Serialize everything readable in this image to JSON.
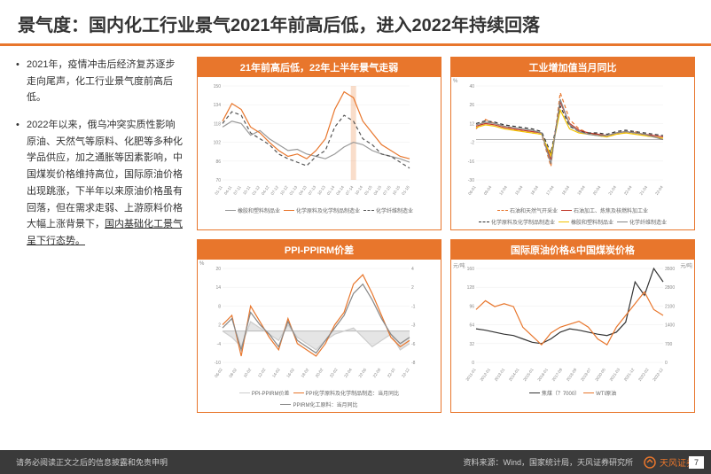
{
  "header": {
    "title": "景气度：国内化工行业景气2021年前高后低，进入2022年持续回落"
  },
  "bullets": [
    {
      "text": "2021年，疫情冲击后经济复苏逐步走向尾声，化工行业景气度前高后低。"
    },
    {
      "text_a": "2022年以来，俄乌冲突实质性影响原油、天然气等原料、化肥等多种化学品供应，加之通胀等因素影响，中国煤炭价格维持高位，国际原油价格出现跳涨，下半年以来原油价格虽有回落，但在需求走弱、上游原料价格大幅上涨背景下，",
      "text_u": "国内基础化工景气呈下行态势。"
    }
  ],
  "charts": [
    {
      "title": "21年前高后低，22年上半年景气走弱",
      "type": "line",
      "ylim": [
        70,
        150
      ],
      "ylabel_unit": "",
      "grid_color": "#eeeeee",
      "x_ticks": [
        "01-11",
        "04-11",
        "07-11",
        "10-11",
        "01-12",
        "04-12",
        "07-12",
        "10-12",
        "01-13",
        "04-13",
        "07-13",
        "10-13",
        "01-14",
        "04-14",
        "07-14",
        "10-14",
        "01-15",
        "04-15",
        "07-15",
        "10-15",
        "01-16"
      ],
      "series": [
        {
          "name": "橡胶和塑料制品业",
          "color": "#999999",
          "dash": "",
          "data": [
            115,
            120,
            118,
            108,
            112,
            105,
            100,
            95,
            96,
            92,
            90,
            88,
            92,
            98,
            102,
            100,
            95,
            92,
            90,
            88,
            85
          ]
        },
        {
          "name": "化学原料及化学制品制造业",
          "color": "#e8762c",
          "dash": "",
          "data": [
            120,
            135,
            130,
            115,
            110,
            102,
            95,
            90,
            92,
            88,
            95,
            105,
            130,
            145,
            140,
            120,
            110,
            100,
            95,
            90,
            88
          ]
        },
        {
          "name": "化学纤维制造业",
          "color": "#555555",
          "dash": "4 3",
          "data": [
            118,
            128,
            125,
            110,
            105,
            100,
            92,
            88,
            85,
            82,
            90,
            95,
            115,
            125,
            120,
            105,
            100,
            92,
            90,
            85,
            80
          ]
        }
      ],
      "mark_x": 14,
      "mark_color": "#e8762c"
    },
    {
      "title": "工业增加值当月同比",
      "type": "line",
      "ylim": [
        -30,
        40
      ],
      "ylabel_unit": "%",
      "grid_color": "#eeeeee",
      "x_ticks": [
        "06-01",
        "09-04",
        "12-04",
        "15-04",
        "18-04",
        "17-04",
        "18-04",
        "19-04",
        "20-04",
        "21-04",
        "22-04",
        "21-04",
        "22-04"
      ],
      "series": [
        {
          "name": "石油和天然气开采业",
          "color": "#e8762c",
          "dash": "4 3",
          "data": [
            8,
            15,
            12,
            10,
            8,
            6,
            5,
            4,
            -20,
            35,
            15,
            8,
            5,
            3,
            2,
            4,
            5,
            6,
            3,
            2,
            0
          ]
        },
        {
          "name": "石油加工、炼焦及核燃料加工业",
          "color": "#c0392b",
          "dash": "",
          "data": [
            10,
            12,
            11,
            9,
            8,
            7,
            6,
            5,
            -15,
            28,
            12,
            7,
            5,
            4,
            3,
            5,
            6,
            5,
            4,
            3,
            2
          ]
        },
        {
          "name": "化学原料及化学制品制造业",
          "color": "#333333",
          "dash": "4 3",
          "data": [
            12,
            14,
            13,
            11,
            10,
            9,
            8,
            6,
            -10,
            25,
            10,
            6,
            5,
            5,
            4,
            6,
            7,
            6,
            5,
            4,
            3
          ]
        },
        {
          "name": "橡胶和塑料制品业",
          "color": "#f2c200",
          "dash": "",
          "data": [
            9,
            11,
            10,
            8,
            7,
            6,
            5,
            4,
            -12,
            22,
            8,
            5,
            4,
            3,
            2,
            4,
            5,
            4,
            3,
            2,
            1
          ]
        },
        {
          "name": "化学纤维制造业",
          "color": "#888888",
          "dash": "",
          "data": [
            11,
            13,
            12,
            10,
            9,
            8,
            7,
            5,
            -18,
            30,
            11,
            6,
            4,
            3,
            3,
            5,
            6,
            5,
            4,
            2,
            0
          ]
        }
      ]
    },
    {
      "title": "PPI-PPIRM价差",
      "type": "line-dual",
      "ylim_l": [
        -10,
        20
      ],
      "ylim_r": [
        -8,
        4
      ],
      "ylabel_unit": "%",
      "grid_color": "#eeeeee",
      "x_ticks": [
        "06-02",
        "08-02",
        "10-02",
        "12-02",
        "14-02",
        "16-02",
        "18-02",
        "20-02",
        "22-02",
        "22-04",
        "22-06",
        "22-08",
        "22-10",
        "22-12"
      ],
      "series": [
        {
          "name": "PPI-PPIRM价差",
          "color": "#cccccc",
          "fill": true,
          "data": [
            0,
            -2,
            -5,
            3,
            1,
            -1,
            -3,
            2,
            -2,
            -4,
            -6,
            -3,
            -1,
            0,
            1,
            -2,
            -5,
            -3,
            -1,
            -6,
            -4
          ]
        },
        {
          "name": "PPI化学原料及化学制品制造：当月同比",
          "color": "#e8762c",
          "dash": "",
          "data": [
            2,
            5,
            -8,
            8,
            3,
            -2,
            -6,
            4,
            -4,
            -6,
            -8,
            -4,
            2,
            6,
            15,
            18,
            12,
            5,
            -2,
            -5,
            -3
          ]
        },
        {
          "name": "PPIRM化工原料：当月同比",
          "color": "#888888",
          "dash": "",
          "data": [
            1,
            4,
            -6,
            6,
            2,
            -1,
            -5,
            3,
            -3,
            -5,
            -7,
            -3,
            1,
            5,
            12,
            15,
            10,
            4,
            -1,
            -4,
            -2
          ]
        }
      ]
    },
    {
      "title": "国际原油价格&中国煤炭价格",
      "type": "line-dual",
      "ylim_l": [
        0,
        160
      ],
      "ylim_r": [
        0,
        3500
      ],
      "ylabel_l": "元/吨",
      "ylabel_r": "元/吨",
      "grid_color": "#eeeeee",
      "x_ticks": [
        "2011-01",
        "2012-01",
        "2013-01",
        "2014-01",
        "2015-01",
        "2016-01",
        "2017-09",
        "2018-09",
        "2019-07",
        "2020-05",
        "2021-03",
        "2021-12",
        "2022-02",
        "2022-12"
      ],
      "series": [
        {
          "name": "焦煤（？7000）",
          "color": "#333333",
          "dash": "",
          "axis": "r",
          "data": [
            50,
            48,
            45,
            42,
            40,
            35,
            30,
            28,
            35,
            45,
            50,
            48,
            45,
            42,
            40,
            45,
            60,
            120,
            100,
            140,
            120
          ]
        },
        {
          "name": "WTI原油",
          "color": "#e8762c",
          "dash": "",
          "axis": "l",
          "data": [
            90,
            105,
            95,
            100,
            95,
            60,
            45,
            30,
            50,
            60,
            65,
            70,
            60,
            40,
            30,
            60,
            80,
            100,
            120,
            90,
            80
          ]
        }
      ]
    }
  ],
  "footer": {
    "disclaimer": "请务必阅读正文之后的信息披露和免责申明",
    "source": "资料来源：Wind，国家统计局，天风证券研究所",
    "logo_text": "天风证券",
    "logo_sub": "IT SECURITIES",
    "page": "7"
  }
}
